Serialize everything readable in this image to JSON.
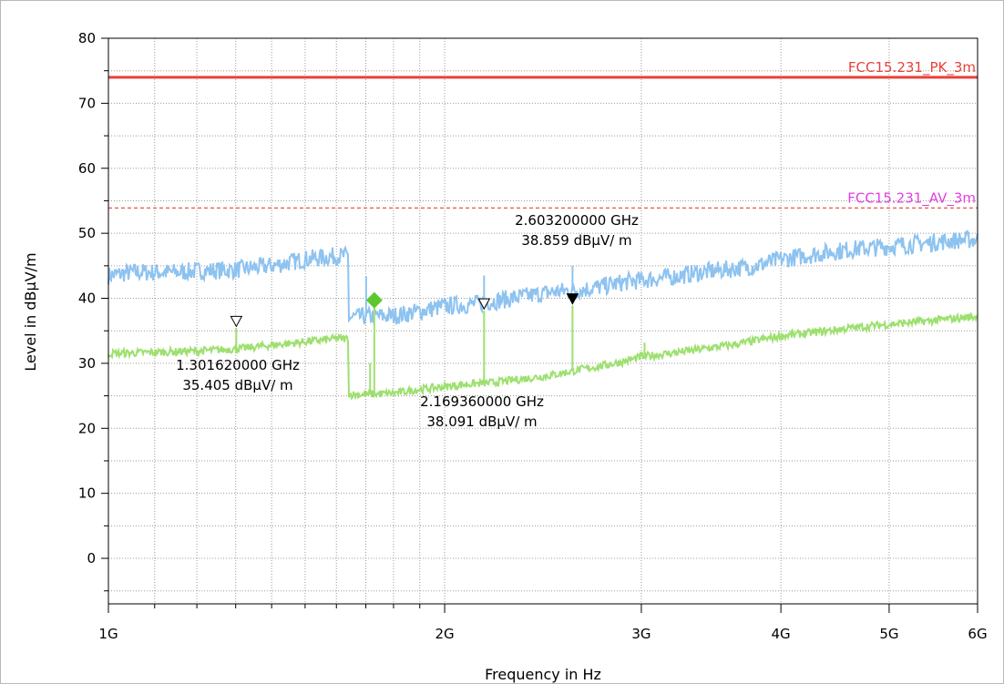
{
  "chart_data": {
    "type": "line",
    "title": "",
    "xlabel": "Frequency in Hz",
    "ylabel": "Level in dBµV/m",
    "xscale": "log",
    "xlim": [
      1000000000,
      6000000000
    ],
    "ylim": [
      -7,
      80
    ],
    "grid": true,
    "x_ticks": [
      {
        "value": 1000000000,
        "label": "1G"
      },
      {
        "value": 2000000000,
        "label": "2G"
      },
      {
        "value": 3000000000,
        "label": "3G"
      },
      {
        "value": 4000000000,
        "label": "4G"
      },
      {
        "value": 5000000000,
        "label": "5G"
      },
      {
        "value": 6000000000,
        "label": "6G"
      }
    ],
    "y_ticks": [
      0,
      10,
      20,
      30,
      40,
      50,
      60,
      70,
      80
    ],
    "limit_lines": [
      {
        "name": "FCC15.231_PK_3m",
        "level": 74.0,
        "color": "#e8403a",
        "style": "solid"
      },
      {
        "name": "FCC15.231_AV_3m",
        "level": 53.9,
        "color": "#e8403a",
        "label_color": "#e040e0",
        "style": "dashed"
      }
    ],
    "series": [
      {
        "color": "#8ec3f0",
        "points": [
          [
            1.0,
            43.5
          ],
          [
            1.05,
            44.0
          ],
          [
            1.1,
            44.0
          ],
          [
            1.15,
            44.0
          ],
          [
            1.2,
            44.2
          ],
          [
            1.3,
            44.4
          ],
          [
            1.4,
            45.0
          ],
          [
            1.5,
            46.0
          ],
          [
            1.6,
            46.5
          ],
          [
            1.64,
            46.5
          ],
          [
            1.641,
            37.0
          ],
          [
            1.7,
            37.2
          ],
          [
            1.8,
            37.3
          ],
          [
            1.9,
            38.0
          ],
          [
            2.0,
            38.8
          ],
          [
            2.1,
            39.0
          ],
          [
            2.2,
            39.5
          ],
          [
            2.3,
            40.0
          ],
          [
            2.4,
            40.5
          ],
          [
            2.5,
            41.0
          ],
          [
            2.6,
            41.2
          ],
          [
            2.7,
            41.5
          ],
          [
            2.8,
            42.0
          ],
          [
            2.9,
            42.5
          ],
          [
            3.0,
            42.8
          ],
          [
            3.2,
            43.3
          ],
          [
            3.4,
            44.0
          ],
          [
            3.6,
            44.5
          ],
          [
            3.8,
            45.0
          ],
          [
            4.0,
            46.0
          ],
          [
            4.3,
            46.8
          ],
          [
            4.6,
            47.5
          ],
          [
            5.0,
            48.0
          ],
          [
            5.4,
            48.5
          ],
          [
            5.8,
            49.0
          ],
          [
            6.0,
            49.0
          ]
        ],
        "noise": 1.4
      },
      {
        "color": "#9ee070",
        "points": [
          [
            1.0,
            31.5
          ],
          [
            1.1,
            31.7
          ],
          [
            1.2,
            31.9
          ],
          [
            1.3,
            32.2
          ],
          [
            1.4,
            32.8
          ],
          [
            1.5,
            33.3
          ],
          [
            1.6,
            33.8
          ],
          [
            1.64,
            33.8
          ],
          [
            1.641,
            25.2
          ],
          [
            1.7,
            25.2
          ],
          [
            1.8,
            25.4
          ],
          [
            1.9,
            26.0
          ],
          [
            2.0,
            26.4
          ],
          [
            2.1,
            26.8
          ],
          [
            2.2,
            27.0
          ],
          [
            2.3,
            27.4
          ],
          [
            2.4,
            27.8
          ],
          [
            2.5,
            28.2
          ],
          [
            2.6,
            28.8
          ],
          [
            2.7,
            29.3
          ],
          [
            2.8,
            29.8
          ],
          [
            2.9,
            30.3
          ],
          [
            3.0,
            31.0
          ],
          [
            3.2,
            31.6
          ],
          [
            3.4,
            32.2
          ],
          [
            3.6,
            32.8
          ],
          [
            3.8,
            33.5
          ],
          [
            4.0,
            34.2
          ],
          [
            4.3,
            34.8
          ],
          [
            4.6,
            35.4
          ],
          [
            5.0,
            36.0
          ],
          [
            5.4,
            36.5
          ],
          [
            5.8,
            37.0
          ],
          [
            6.0,
            37.2
          ]
        ],
        "noise": 0.6
      }
    ],
    "spikes": [
      {
        "freq": 1301620000,
        "top": 35.405,
        "base": 31.8,
        "color": "#9ee070"
      },
      {
        "freq": 1701000000,
        "top": 43.4,
        "base": 37.2,
        "color": "#8ec3f0"
      },
      {
        "freq": 1730000000,
        "top": 39.5,
        "base": 25.3,
        "color": "#9ee070"
      },
      {
        "freq": 1715000000,
        "top": 30.0,
        "base": 25.3,
        "color": "#9ee070"
      },
      {
        "freq": 2169360000,
        "top": 38.091,
        "base": 27.0,
        "color": "#9ee070"
      },
      {
        "freq": 2169360000,
        "top": 43.5,
        "base": 39.3,
        "color": "#8ec3f0"
      },
      {
        "freq": 2603200000,
        "top": 38.859,
        "base": 28.8,
        "color": "#9ee070"
      },
      {
        "freq": 2603200000,
        "top": 45.0,
        "base": 41.2,
        "color": "#8ec3f0"
      },
      {
        "freq": 3020000000,
        "top": 33.2,
        "base": 31.0,
        "color": "#9ee070"
      }
    ],
    "markers": [
      {
        "freq": 1301620000,
        "level": 35.405,
        "symbol": "triangle-open",
        "label_freq": "1.301620000 GHz",
        "label_level": "35.405 dBµV/ m"
      },
      {
        "freq": 2169360000,
        "level": 38.091,
        "symbol": "triangle-open",
        "label_freq": "2.169360000 GHz",
        "label_level": "38.091 dBµV/ m"
      },
      {
        "freq": 2603200000,
        "level": 38.859,
        "symbol": "triangle-filled",
        "label_freq": "2.603200000 GHz",
        "label_level": "38.859 dBµV/ m"
      },
      {
        "freq": 1730000000,
        "level": 39.7,
        "symbol": "diamond",
        "color": "#5cc830"
      }
    ]
  }
}
